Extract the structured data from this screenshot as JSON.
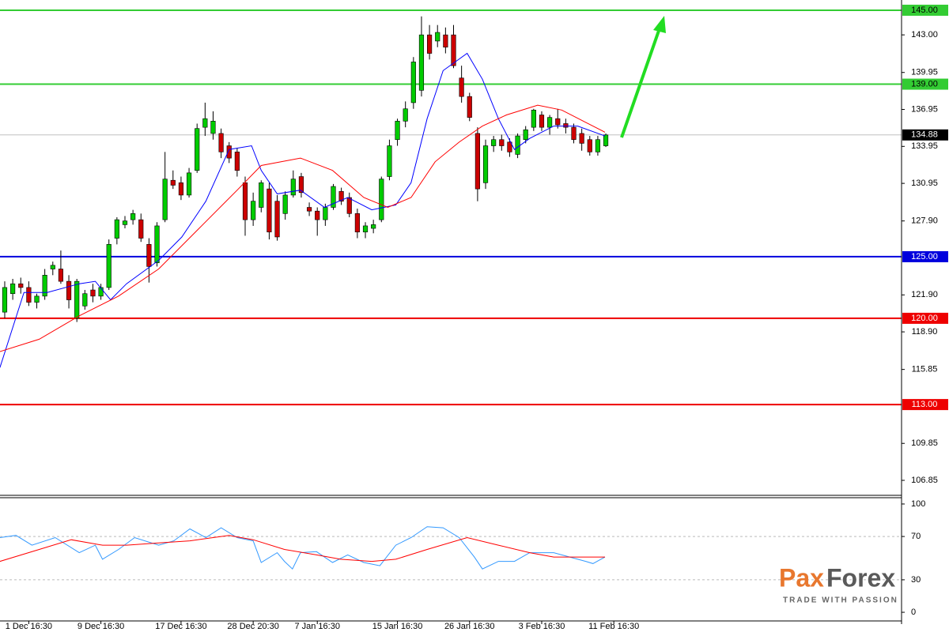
{
  "chart_data": {
    "type": "candlestick",
    "ohlc": [
      [
        120.5,
        123,
        120,
        122.5
      ],
      [
        122,
        123.2,
        121.5,
        122.8
      ],
      [
        122.8,
        123.3,
        122,
        122.5
      ],
      [
        122.5,
        123,
        121,
        121.3
      ],
      [
        121.3,
        122,
        120.8,
        121.8
      ],
      [
        121.8,
        124,
        121.5,
        123.5
      ],
      [
        124,
        124.6,
        123.5,
        124.3
      ],
      [
        124,
        125.5,
        122.8,
        123
      ],
      [
        123,
        123.5,
        120.8,
        121.5
      ],
      [
        120,
        123.2,
        119.7,
        123
      ],
      [
        121,
        122.3,
        120.7,
        122
      ],
      [
        122.3,
        122.8,
        121.3,
        121.8
      ],
      [
        121.8,
        122.8,
        121.5,
        122.5
      ],
      [
        122.5,
        126.4,
        122.3,
        126
      ],
      [
        126.5,
        128.2,
        126,
        128
      ],
      [
        127.6,
        128.3,
        127.3,
        127.9
      ],
      [
        128,
        128.8,
        127.6,
        128.5
      ],
      [
        128,
        128.5,
        126.2,
        126.5
      ],
      [
        126,
        126.5,
        122.9,
        124.2
      ],
      [
        124.5,
        127.8,
        124.2,
        127.5
      ],
      [
        128,
        133.5,
        127.8,
        131.3
      ],
      [
        131.2,
        132,
        130.5,
        130.8
      ],
      [
        131,
        131.5,
        129.6,
        130
      ],
      [
        130,
        132.2,
        129.8,
        131.8
      ],
      [
        132,
        135.8,
        131.8,
        135.4
      ],
      [
        135.5,
        137.5,
        134.8,
        136.2
      ],
      [
        135,
        136.8,
        134.5,
        136
      ],
      [
        135,
        135.4,
        133,
        133.5
      ],
      [
        134,
        134.3,
        132.6,
        133
      ],
      [
        133.5,
        133.8,
        131.5,
        132
      ],
      [
        131,
        131.5,
        126.7,
        128
      ],
      [
        128,
        130.2,
        127.5,
        129.5
      ],
      [
        129,
        131.2,
        128.6,
        131
      ],
      [
        130.5,
        131,
        126.4,
        127
      ],
      [
        129.5,
        130,
        126.3,
        126.6
      ],
      [
        128.5,
        130.3,
        128,
        130
      ],
      [
        130,
        132,
        129.8,
        131.3
      ],
      [
        131.5,
        131.8,
        129.8,
        130.2
      ],
      [
        129,
        129.4,
        128.3,
        128.7
      ],
      [
        128.7,
        129,
        126.7,
        128
      ],
      [
        128,
        129.3,
        127.5,
        129
      ],
      [
        129,
        130.9,
        128.8,
        130.7
      ],
      [
        130.3,
        130.6,
        129.2,
        129.5
      ],
      [
        129.8,
        130.2,
        128.2,
        128.5
      ],
      [
        128.5,
        128.9,
        126.5,
        127
      ],
      [
        127,
        127.8,
        126.5,
        127.5
      ],
      [
        127.3,
        128,
        126.9,
        127.6
      ],
      [
        128,
        131.5,
        127.8,
        131.3
      ],
      [
        131.5,
        134.5,
        131.2,
        134
      ],
      [
        134.5,
        136.2,
        134,
        136
      ],
      [
        136,
        137.6,
        135.5,
        137
      ],
      [
        137.5,
        141.2,
        137,
        140.8
      ],
      [
        138.5,
        144.5,
        138,
        143
      ],
      [
        143,
        143.8,
        141,
        141.5
      ],
      [
        142.5,
        143.8,
        142,
        143.2
      ],
      [
        143,
        143.6,
        141.5,
        142
      ],
      [
        143,
        143.8,
        140.3,
        140.5
      ],
      [
        139.5,
        140.5,
        137.5,
        138
      ],
      [
        138,
        138.3,
        136,
        136.3
      ],
      [
        135,
        135.5,
        129.5,
        130.5
      ],
      [
        131,
        134.5,
        130.5,
        134
      ],
      [
        134,
        134.8,
        133.5,
        134.5
      ],
      [
        134.5,
        134.9,
        133.6,
        134
      ],
      [
        134.3,
        134.6,
        133.1,
        133.5
      ],
      [
        133.3,
        135,
        133,
        134.8
      ],
      [
        134.5,
        135.6,
        134.2,
        135.3
      ],
      [
        135.5,
        137,
        135.2,
        136.9
      ],
      [
        136.5,
        136.8,
        135.2,
        135.5
      ],
      [
        135.5,
        136.5,
        134.9,
        136.3
      ],
      [
        136.2,
        137,
        135.4,
        135.7
      ],
      [
        135.8,
        136.2,
        135,
        135.5
      ],
      [
        135.5,
        135.8,
        134.2,
        134.5
      ],
      [
        135,
        135.4,
        133.6,
        134.2
      ],
      [
        134.5,
        134.8,
        133.2,
        133.5
      ],
      [
        133.5,
        134.8,
        133.2,
        134.5
      ],
      [
        134,
        135,
        133.9,
        134.88
      ]
    ],
    "up_color": "#00cc00",
    "down_color": "#cc0000",
    "xlim": [
      -0.59,
      111.9
    ],
    "xticks": [
      {
        "value": 3,
        "label": "1 Dec 16:30"
      },
      {
        "value": 12,
        "label": "9 Dec 16:30"
      },
      {
        "value": 22,
        "label": "17 Dec 16:30"
      },
      {
        "value": 31,
        "label": "28 Dec 20:30"
      },
      {
        "value": 39,
        "label": "7 Jan 16:30"
      },
      {
        "value": 49,
        "label": "15 Jan 16:30"
      },
      {
        "value": 58,
        "label": "26 Jan 16:30"
      },
      {
        "value": 67,
        "label": "3 Feb 16:30"
      },
      {
        "value": 76,
        "label": "11 Feb 16:30"
      }
    ],
    "ylim": [
      105.57,
      145.83
    ],
    "yticks": [
      {
        "value": 143,
        "label": "143.00"
      },
      {
        "value": 139.95,
        "label": "139.95"
      },
      {
        "value": 136.95,
        "label": "136.95"
      },
      {
        "value": 133.95,
        "label": "133.95"
      },
      {
        "value": 130.95,
        "label": "130.95"
      },
      {
        "value": 127.9,
        "label": "127.90"
      },
      {
        "value": 121.9,
        "label": "121.90"
      },
      {
        "value": 118.9,
        "label": "118.90"
      },
      {
        "value": 115.85,
        "label": "115.85"
      },
      {
        "value": 109.85,
        "label": "109.85"
      },
      {
        "value": 106.85,
        "label": "106.85"
      }
    ],
    "moving_averages": [
      {
        "color": "#0000ff",
        "x": [
          -0.6,
          2.4,
          5.3,
          9.3,
          11.3,
          13.2,
          15.2,
          19.2,
          22.1,
          25.1,
          28,
          30.8,
          32,
          34,
          36.9,
          39.9,
          42.8,
          45.8,
          48.8,
          50.7,
          52.7,
          54.7,
          57.7,
          59.6,
          61.6,
          63.6,
          65.5,
          68.5,
          71.5,
          74.9
        ],
        "values": [
          116,
          122.1,
          122.1,
          122.8,
          123,
          121.5,
          122.8,
          124.7,
          126.6,
          129.5,
          133.7,
          134,
          132,
          130.1,
          130.4,
          129,
          129.8,
          128.8,
          129.2,
          131,
          136.2,
          140.1,
          141.5,
          139.4,
          136.2,
          133.7,
          134.6,
          135.6,
          135.6,
          134.8
        ]
      },
      {
        "color": "#ff0000",
        "x": [
          -0.6,
          4.3,
          9.3,
          14.2,
          19.2,
          24.1,
          29,
          32,
          36.9,
          40.9,
          44.8,
          47.8,
          50.7,
          53.7,
          56.7,
          59.6,
          62.6,
          66.5,
          69.5,
          72.5,
          74.9
        ],
        "values": [
          117.3,
          118.3,
          120.2,
          121.8,
          124,
          127.2,
          130.4,
          132.4,
          133,
          132,
          129.8,
          129,
          129.8,
          132.7,
          134.3,
          135.6,
          136.5,
          137.3,
          136.9,
          135.9,
          135.1
        ]
      }
    ],
    "levels": [
      {
        "value": 145,
        "label": "145.00",
        "color": "#33cc33"
      },
      {
        "value": 139,
        "label": "139.00",
        "color": "#33cc33"
      },
      {
        "value": 134.88,
        "label": "134.88",
        "color": "#c0c0c0"
      },
      {
        "value": 125,
        "label": "125.00",
        "color": "#0000dd"
      },
      {
        "value": 120,
        "label": "120.00",
        "color": "#ee0000"
      },
      {
        "value": 113,
        "label": "113.00",
        "color": "#ee0000"
      }
    ],
    "oscillator": {
      "ylim": [
        -10.9,
        105.8
      ],
      "yticks": [
        100,
        70,
        30,
        0
      ],
      "dashed_levels": [
        70,
        30
      ],
      "series": [
        {
          "color": "#3399ff",
          "x": [
            -0.6,
            1.4,
            3.4,
            6.3,
            9.3,
            11.3,
            12.2,
            14.2,
            16.2,
            19.2,
            21.1,
            23.1,
            25.1,
            27,
            29,
            31,
            32,
            34,
            34.9,
            35.9,
            36.9,
            38.9,
            40.9,
            42.8,
            44.8,
            46.8,
            48.8,
            50.7,
            52.7,
            54.7,
            56.7,
            58.6,
            59.6,
            61.6,
            63.6,
            65.5,
            68.5,
            70.5,
            72.5,
            73.4,
            74.9
          ],
          "values": [
            69,
            71,
            62,
            69,
            55,
            62,
            49,
            58,
            69,
            62,
            66,
            77,
            69,
            78,
            69,
            66,
            46,
            55,
            47,
            40,
            55,
            56,
            46,
            53,
            46,
            43,
            62,
            69,
            79,
            78,
            69,
            51,
            40,
            47,
            47,
            55,
            55,
            51,
            47,
            45,
            51
          ]
        },
        {
          "color": "#ff0000",
          "x": [
            -0.6,
            4.3,
            8.3,
            12.2,
            15.2,
            19.2,
            23.1,
            28,
            31,
            34.9,
            38.9,
            41.9,
            45.8,
            48.8,
            52.7,
            57.7,
            61.6,
            65.5,
            68.5,
            72.5,
            74.9
          ],
          "values": [
            47,
            58,
            67,
            62,
            62,
            64,
            66,
            71,
            67,
            58,
            53,
            49,
            47,
            49,
            58,
            69,
            62,
            55,
            51,
            51,
            51
          ]
        }
      ]
    }
  },
  "branding": {
    "left": "Pax",
    "right": "Forex",
    "tagline": "TRADE WITH PASSION"
  }
}
